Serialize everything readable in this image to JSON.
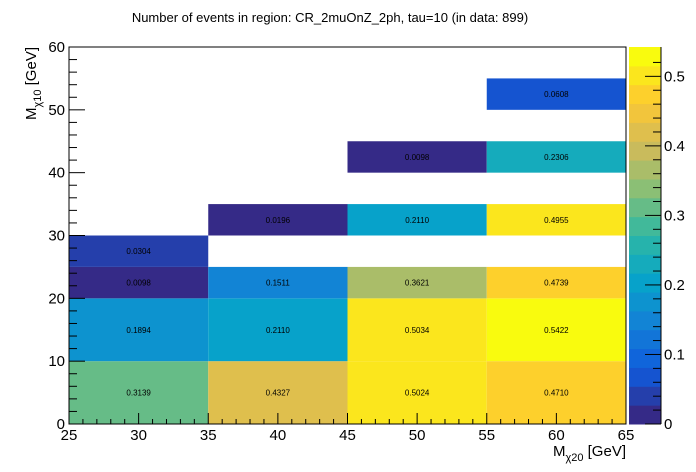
{
  "chart_data": {
    "type": "heatmap",
    "title": "Number of events in region: CR_2muOnZ_2ph, tau=10 (in data: 899)",
    "xlabel": {
      "main": "M",
      "sub": "χ20",
      "unit": " [GeV]"
    },
    "ylabel": {
      "main": "M",
      "sub": "χ10",
      "unit": " [GeV]"
    },
    "xlim": [
      25,
      65
    ],
    "ylim": [
      0,
      60
    ],
    "zlim": [
      0,
      0.5422
    ],
    "xticks": [
      "25",
      "30",
      "35",
      "40",
      "45",
      "50",
      "55",
      "60",
      "65"
    ],
    "xtick_values": [
      25,
      30,
      35,
      40,
      45,
      50,
      55,
      60,
      65
    ],
    "yticks": [
      "0",
      "10",
      "20",
      "30",
      "40",
      "50",
      "60"
    ],
    "ytick_values": [
      0,
      10,
      20,
      30,
      40,
      50,
      60
    ],
    "zticks": [
      "0",
      "0.1",
      "0.2",
      "0.3",
      "0.4",
      "0.5"
    ],
    "ztick_values": [
      0,
      0.1,
      0.2,
      0.3,
      0.4,
      0.5
    ],
    "palette_levels": 20,
    "cells": [
      {
        "x0": 25,
        "x1": 35,
        "y0": 0,
        "y1": 10,
        "z": 0.3139,
        "label": "0.3139"
      },
      {
        "x0": 35,
        "x1": 45,
        "y0": 0,
        "y1": 10,
        "z": 0.4327,
        "label": "0.4327"
      },
      {
        "x0": 45,
        "x1": 55,
        "y0": 0,
        "y1": 10,
        "z": 0.5024,
        "label": "0.5024"
      },
      {
        "x0": 55,
        "x1": 65,
        "y0": 0,
        "y1": 10,
        "z": 0.471,
        "label": "0.4710"
      },
      {
        "x0": 25,
        "x1": 35,
        "y0": 10,
        "y1": 20,
        "z": 0.1894,
        "label": "0.1894"
      },
      {
        "x0": 35,
        "x1": 45,
        "y0": 10,
        "y1": 20,
        "z": 0.211,
        "label": "0.2110"
      },
      {
        "x0": 45,
        "x1": 55,
        "y0": 10,
        "y1": 20,
        "z": 0.5034,
        "label": "0.5034"
      },
      {
        "x0": 55,
        "x1": 65,
        "y0": 10,
        "y1": 20,
        "z": 0.5422,
        "label": "0.5422"
      },
      {
        "x0": 25,
        "x1": 35,
        "y0": 20,
        "y1": 25,
        "z": 0.0098,
        "label": "0.0098"
      },
      {
        "x0": 35,
        "x1": 45,
        "y0": 20,
        "y1": 25,
        "z": 0.1511,
        "label": "0.1511"
      },
      {
        "x0": 45,
        "x1": 55,
        "y0": 20,
        "y1": 25,
        "z": 0.3621,
        "label": "0.3621"
      },
      {
        "x0": 55,
        "x1": 65,
        "y0": 20,
        "y1": 25,
        "z": 0.4739,
        "label": "0.4739"
      },
      {
        "x0": 25,
        "x1": 35,
        "y0": 25,
        "y1": 30,
        "z": 0.0304,
        "label": "0.0304"
      },
      {
        "x0": 35,
        "x1": 45,
        "y0": 30,
        "y1": 35,
        "z": 0.0196,
        "label": "0.0196"
      },
      {
        "x0": 45,
        "x1": 55,
        "y0": 30,
        "y1": 35,
        "z": 0.211,
        "label": "0.2110"
      },
      {
        "x0": 55,
        "x1": 65,
        "y0": 30,
        "y1": 35,
        "z": 0.4955,
        "label": "0.4955"
      },
      {
        "x0": 45,
        "x1": 55,
        "y0": 40,
        "y1": 45,
        "z": 0.0098,
        "label": "0.0098"
      },
      {
        "x0": 55,
        "x1": 65,
        "y0": 40,
        "y1": 45,
        "z": 0.2306,
        "label": "0.2306"
      },
      {
        "x0": 55,
        "x1": 65,
        "y0": 50,
        "y1": 55,
        "z": 0.0608,
        "label": "0.0608"
      }
    ]
  }
}
